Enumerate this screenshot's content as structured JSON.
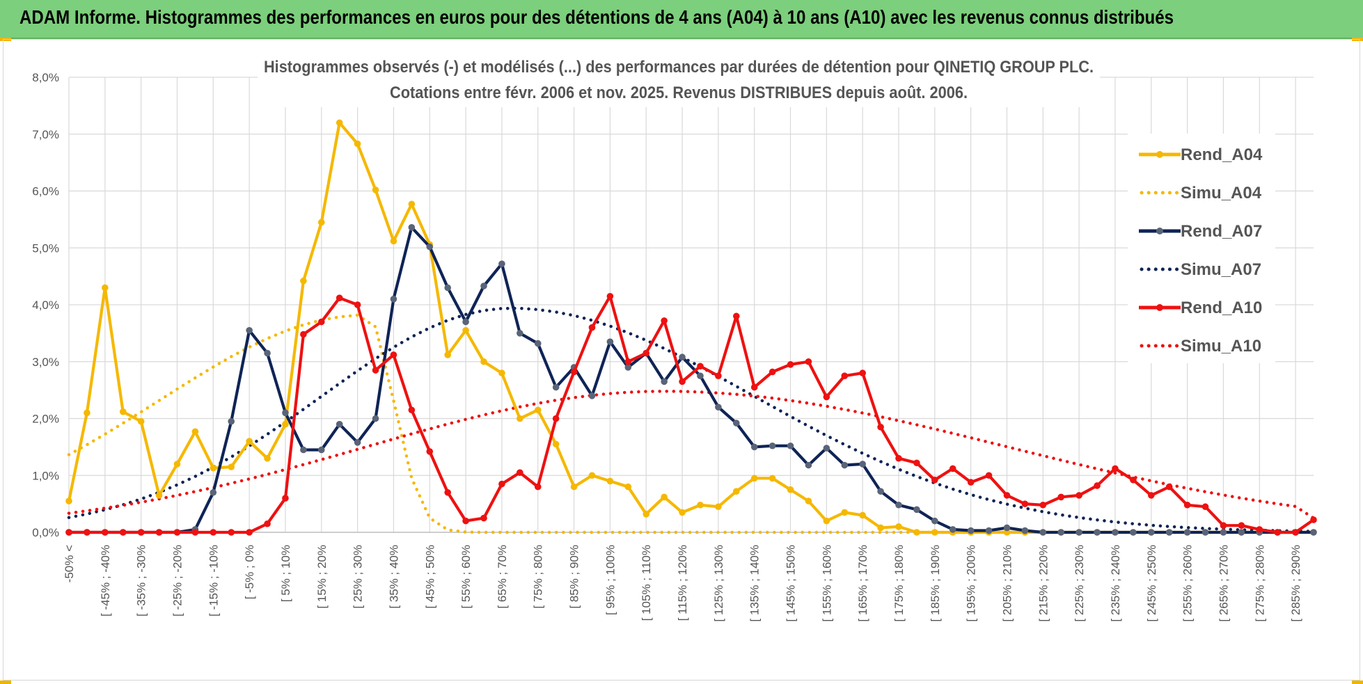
{
  "banner": {
    "title": "ADAM Informe. Histogrammes des performances en euros pour des détentions de 4 ans (A04) à 10 ans (A10) avec les revenus connus distribués",
    "accent": "#7ccf7c"
  },
  "chart_data": {
    "type": "line",
    "title_line1": "Histogrammes observés (-) et modélisés (...) des performances par durées de détention pour QINETIQ GROUP PLC.",
    "title_line2": "Cotations entre févr. 2006 et nov. 2025. Revenus DISTRIBUES depuis août. 2006.",
    "ylim": [
      0,
      8
    ],
    "y_ticks": [
      "0,0%",
      "1,0%",
      "2,0%",
      "3,0%",
      "4,0%",
      "5,0%",
      "6,0%",
      "7,0%",
      "8,0%"
    ],
    "x_tick_labels": [
      "-50% <",
      "[ -45% ; -40%",
      "[ -35% ; -30%",
      "[ -25% ; -20%",
      "[ -15% ; -10%",
      "[ -5% ; 0%",
      "[ 5% ; 10%",
      "[ 15% ; 20%",
      "[ 25% ; 30%",
      "[ 35% ; 40%",
      "[ 45% ; 50%",
      "[ 55% ; 60%",
      "[ 65% ; 70%",
      "[ 75% ; 80%",
      "[ 85% ; 90%",
      "[ 95% ; 100%",
      "[ 105% ; 110%",
      "[ 115% ; 120%",
      "[ 125% ; 130%",
      "[ 135% ; 140%",
      "[ 145% ; 150%",
      "[ 155% ; 160%",
      "[ 165% ; 170%",
      "[ 175% ; 180%",
      "[ 185% ; 190%",
      "[ 195% ; 200%",
      "[ 205% ; 210%",
      "[ 215% ; 220%",
      "[ 225% ; 230%",
      "[ 235% ; 240%",
      "[ 245% ; 250%",
      "[ 255% ; 260%",
      "[ 265% ; 270%",
      "[ 275% ; 280%",
      "[ 285% ; 290%"
    ],
    "x_categories": 70,
    "grid": true,
    "legend_position": "right",
    "series": [
      {
        "name": "Rend_A04",
        "style": "solid",
        "color": "#f5b800",
        "values": [
          0.55,
          2.1,
          4.3,
          2.12,
          1.95,
          0.65,
          1.2,
          1.77,
          1.13,
          1.15,
          1.6,
          1.3,
          1.9,
          4.42,
          5.45,
          7.2,
          6.83,
          6.02,
          5.12,
          5.77,
          5.06,
          3.12,
          3.55,
          3.0,
          2.8,
          2.0,
          2.15,
          1.55,
          0.8,
          1.0,
          0.9,
          0.8,
          0.32,
          0.62,
          0.35,
          0.48,
          0.45,
          0.72,
          0.95,
          0.95,
          0.75,
          0.55,
          0.2,
          0.35,
          0.3,
          0.08,
          0.1,
          0.0,
          0.0,
          0.0,
          0.0,
          0.0,
          0.0,
          0.0,
          0.0,
          0.0,
          0.0,
          0.0,
          0.0,
          0.0,
          0.0,
          0.0,
          0.0,
          0.0,
          0.0,
          0.0,
          0.0,
          0.0,
          0.0,
          0.0
        ]
      },
      {
        "name": "Simu_A04",
        "style": "dotted",
        "color": "#f5b800",
        "gauss": [
          3.82,
          16.5,
          11.5,
          1.5
        ]
      },
      {
        "name": "Rend_A07",
        "style": "solid",
        "color": "#0f2456",
        "values": [
          0.0,
          0.0,
          0.0,
          0.0,
          0.0,
          0.0,
          0.0,
          0.05,
          0.7,
          1.95,
          3.55,
          3.15,
          2.1,
          1.45,
          1.45,
          1.9,
          1.58,
          2.0,
          4.1,
          5.36,
          5.02,
          4.3,
          3.7,
          4.33,
          4.72,
          3.5,
          3.32,
          2.55,
          2.9,
          2.4,
          3.35,
          2.9,
          3.15,
          2.65,
          3.08,
          2.75,
          2.2,
          1.92,
          1.5,
          1.52,
          1.52,
          1.18,
          1.48,
          1.18,
          1.2,
          0.72,
          0.48,
          0.4,
          0.2,
          0.05,
          0.03,
          0.03,
          0.08,
          0.03,
          0.0,
          0.0,
          0.0,
          0.0,
          0.0,
          0.0,
          0.0,
          0.0,
          0.0,
          0.0,
          0.0,
          0.0,
          0.0,
          0.0,
          0.0,
          0.0
        ]
      },
      {
        "name": "Simu_A07",
        "style": "dotted",
        "color": "#0f2456",
        "gauss": [
          3.94,
          24.5,
          10.5,
          13.5
        ]
      },
      {
        "name": "Rend_A10",
        "style": "solid",
        "color": "#ee1111",
        "values": [
          0.0,
          0.0,
          0.0,
          0.0,
          0.0,
          0.0,
          0.0,
          0.0,
          0.0,
          0.0,
          0.0,
          0.15,
          0.6,
          3.48,
          3.7,
          4.12,
          4.0,
          2.85,
          3.12,
          2.15,
          1.42,
          0.7,
          0.2,
          0.25,
          0.85,
          1.05,
          0.8,
          2.0,
          2.82,
          3.6,
          4.15,
          3.0,
          3.15,
          3.72,
          2.65,
          2.92,
          2.75,
          3.8,
          2.55,
          2.82,
          2.95,
          3.0,
          2.38,
          2.75,
          2.8,
          1.85,
          1.3,
          1.22,
          0.92,
          1.12,
          0.88,
          1.0,
          0.65,
          0.5,
          0.48,
          0.62,
          0.65,
          0.82,
          1.12,
          0.92,
          0.65,
          0.8,
          0.48,
          0.45,
          0.12,
          0.12,
          0.05,
          0.0,
          0.0,
          0.22
        ]
      },
      {
        "name": "Simu_A10",
        "style": "dotted",
        "color": "#ee1111",
        "gauss": [
          2.48,
          33.0,
          16.5,
          19.0
        ]
      }
    ]
  }
}
